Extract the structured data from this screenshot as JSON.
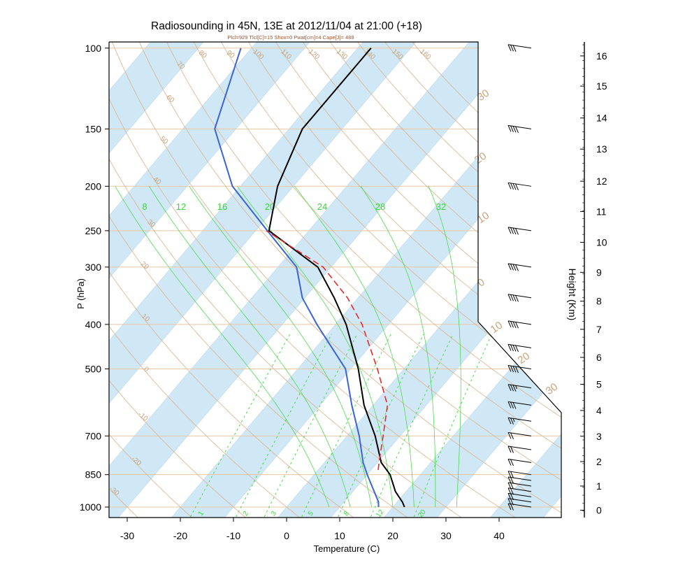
{
  "chart_data": {
    "type": "line",
    "subtype": "skew-t log-p diagram",
    "title": "Radiosounding in 45N, 13E  at  2012/11/04 at 21:00   (+18)",
    "subtitle": "Plcl=929 Tlcl[C]=15 Shox=0 Pwat[cm]=4 Cape[J]= 488",
    "xlabel": "Temperature (C)",
    "ylabel": "P (hPa)",
    "y2label": "Height (Km)",
    "xlim": [
      -33,
      52
    ],
    "ylim": [
      1050,
      100
    ],
    "pressure_ticks": [
      {
        "p": 1000,
        "label": "1000"
      },
      {
        "p": 850,
        "label": "850"
      },
      {
        "p": 700,
        "label": "700"
      },
      {
        "p": 500,
        "label": "500"
      },
      {
        "p": 400,
        "label": "400"
      },
      {
        "p": 300,
        "label": "300"
      },
      {
        "p": 250,
        "label": "250"
      },
      {
        "p": 200,
        "label": "200"
      },
      {
        "p": 150,
        "label": "150"
      },
      {
        "p": 100,
        "label": "100"
      }
    ],
    "temperature_ticks": [
      {
        "t": -30,
        "label": "-30"
      },
      {
        "t": -20,
        "label": "-20"
      },
      {
        "t": -10,
        "label": "-10"
      },
      {
        "t": 0,
        "label": "0"
      },
      {
        "t": 10,
        "label": "10"
      },
      {
        "t": 20,
        "label": "20"
      },
      {
        "t": 30,
        "label": "30"
      },
      {
        "t": 40,
        "label": "40"
      }
    ],
    "height_ticks": [
      {
        "km": 0,
        "p": 1016,
        "label": "0"
      },
      {
        "km": 1,
        "p": 900,
        "label": "1"
      },
      {
        "km": 2,
        "p": 796,
        "label": "2"
      },
      {
        "km": 3,
        "p": 701,
        "label": "3"
      },
      {
        "km": 4,
        "p": 616,
        "label": "4"
      },
      {
        "km": 5,
        "p": 540,
        "label": "5"
      },
      {
        "km": 6,
        "p": 472,
        "label": "6"
      },
      {
        "km": 7,
        "p": 410,
        "label": "7"
      },
      {
        "km": 8,
        "p": 356,
        "label": "8"
      },
      {
        "km": 9,
        "p": 308,
        "label": "9"
      },
      {
        "km": 10,
        "p": 265,
        "label": "10"
      },
      {
        "km": 11,
        "p": 227,
        "label": "11"
      },
      {
        "km": 12,
        "p": 195,
        "label": "12"
      },
      {
        "km": 13,
        "p": 166,
        "label": "13"
      },
      {
        "km": 14,
        "p": 142,
        "label": "14"
      },
      {
        "km": 15,
        "p": 121,
        "label": "15"
      },
      {
        "km": 16,
        "p": 104,
        "label": "16"
      }
    ],
    "isotherm_band_temps": [
      -120,
      -100,
      -80,
      -60,
      -40,
      -20,
      0,
      20,
      40
    ],
    "dry_adiabats": [
      {
        "theta": -30,
        "label": "-30",
        "label_p": 930
      },
      {
        "theta": -20,
        "label": "-20",
        "label_p": 800
      },
      {
        "theta": -10,
        "label": "-10",
        "label_p": 640
      },
      {
        "theta": 0,
        "label": "0",
        "label_p": 505
      },
      {
        "theta": 10,
        "label": "10",
        "label_p": 390
      },
      {
        "theta": 20,
        "label": "20",
        "label_p": 300
      },
      {
        "theta": 30,
        "label": "30",
        "label_p": 243
      },
      {
        "theta": 40,
        "label": "40",
        "label_p": 196
      },
      {
        "theta": 50,
        "label": "50",
        "label_p": 160
      },
      {
        "theta": 60,
        "label": "60",
        "label_p": 130
      },
      {
        "theta": 70,
        "label": "70",
        "label_p": 110
      },
      {
        "theta": 80,
        "label": "80",
        "label_p": 104
      },
      {
        "theta": 90,
        "label": "90",
        "label_p": 104
      },
      {
        "theta": 100,
        "label": "100",
        "label_p": 104
      },
      {
        "theta": 110,
        "label": "110",
        "label_p": 104
      },
      {
        "theta": 120,
        "label": "120",
        "label_p": 104
      },
      {
        "theta": 130,
        "label": "130",
        "label_p": 104
      },
      {
        "theta": 140,
        "label": "140",
        "label_p": 104
      },
      {
        "theta": 150,
        "label": "150",
        "label_p": 104
      },
      {
        "theta": 160,
        "label": "160",
        "label_p": 104
      }
    ],
    "moist_adiabats": [
      {
        "theta_e": 8,
        "label": "8"
      },
      {
        "theta_e": 12,
        "label": "12"
      },
      {
        "theta_e": 16,
        "label": "16"
      },
      {
        "theta_e": 20,
        "label": "20"
      },
      {
        "theta_e": 24,
        "label": "24"
      },
      {
        "theta_e": 28,
        "label": "28"
      },
      {
        "theta_e": 32,
        "label": "32"
      }
    ],
    "mixing_ratio_lines": [
      {
        "w": 1,
        "label": "1"
      },
      {
        "w": 2,
        "label": "2"
      },
      {
        "w": 3,
        "label": "3"
      },
      {
        "w": 5,
        "label": "5"
      },
      {
        "w": 8,
        "label": "8"
      },
      {
        "w": 12,
        "label": "12"
      },
      {
        "w": 20,
        "label": "20"
      }
    ],
    "right_isotherm_labels": [
      {
        "t": 30,
        "label": "30"
      },
      {
        "t": 20,
        "label": "20"
      },
      {
        "t": 10,
        "label": "10"
      },
      {
        "t": 0,
        "label": "0"
      },
      {
        "t": 10,
        "label": "10"
      },
      {
        "t": 20,
        "label": "20"
      },
      {
        "t": 30,
        "label": "30"
      }
    ],
    "series": [
      {
        "name": "Temperature",
        "color": "#000000",
        "p": [
          1000,
          975,
          925,
          850,
          800,
          700,
          600,
          500,
          400,
          350,
          300,
          250,
          200,
          150,
          100
        ],
        "t": [
          22.2,
          21,
          18,
          14.3,
          10.7,
          5.3,
          -1.7,
          -8.6,
          -18,
          -24.5,
          -32.5,
          -47.5,
          -53,
          -57.5,
          -57.5
        ]
      },
      {
        "name": "Dewpoint",
        "color": "#3a63d6",
        "p": [
          1000,
          975,
          925,
          850,
          800,
          700,
          600,
          500,
          400,
          350,
          300,
          250,
          200,
          150,
          100
        ],
        "t": [
          17.3,
          16.5,
          14,
          10,
          7.3,
          2.3,
          -4,
          -11,
          -23.5,
          -30.5,
          -36.5,
          -47.8,
          -61.5,
          -74,
          -82
        ]
      },
      {
        "name": "Parcel",
        "color": "#e8282a",
        "style": "dashed",
        "p": [
          830,
          800,
          700,
          600,
          500,
          400,
          350,
          300,
          250
        ],
        "t": [
          11.3,
          10.3,
          6.8,
          2.7,
          -5,
          -15,
          -22,
          -31.5,
          -48
        ]
      }
    ],
    "wind_barbs": [
      {
        "p": 1000,
        "speed_kt": 20
      },
      {
        "p": 975,
        "speed_kt": 20
      },
      {
        "p": 950,
        "speed_kt": 20
      },
      {
        "p": 925,
        "speed_kt": 20
      },
      {
        "p": 900,
        "speed_kt": 20
      },
      {
        "p": 875,
        "speed_kt": 20
      },
      {
        "p": 850,
        "speed_kt": 20
      },
      {
        "p": 800,
        "speed_kt": 20
      },
      {
        "p": 750,
        "speed_kt": 20
      },
      {
        "p": 700,
        "speed_kt": 20
      },
      {
        "p": 650,
        "speed_kt": 25
      },
      {
        "p": 600,
        "speed_kt": 30
      },
      {
        "p": 550,
        "speed_kt": 35
      },
      {
        "p": 500,
        "speed_kt": 40
      },
      {
        "p": 450,
        "speed_kt": 40
      },
      {
        "p": 400,
        "speed_kt": 40
      },
      {
        "p": 350,
        "speed_kt": 40
      },
      {
        "p": 300,
        "speed_kt": 40
      },
      {
        "p": 250,
        "speed_kt": 40
      },
      {
        "p": 200,
        "speed_kt": 40
      },
      {
        "p": 150,
        "speed_kt": 40
      },
      {
        "p": 100,
        "speed_kt": 30
      }
    ],
    "colors": {
      "band": "#d0e8f6",
      "band_edge": "#b9d7ea",
      "grid": "#e8c7a3",
      "dry_adiabat": "#d9b28a",
      "label_tan": "#c9a17a",
      "moist": "#36d936",
      "mixing": "#36d936",
      "frame": "#000000"
    }
  }
}
